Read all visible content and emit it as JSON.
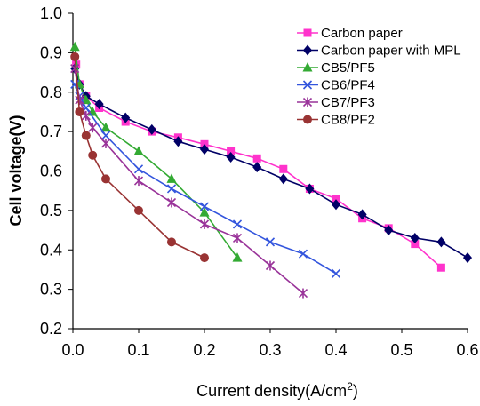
{
  "chart_data": {
    "type": "line",
    "title": "",
    "xlabel": "Current density(A/cm",
    "xlabel_sup": "2",
    "xlabel_close": ")",
    "ylabel": "Cell voltage(V)",
    "xlim": [
      0.0,
      0.6
    ],
    "ylim": [
      0.2,
      1.0
    ],
    "xticks": [
      0.0,
      0.1,
      0.2,
      0.3,
      0.4,
      0.5,
      0.6
    ],
    "yticks": [
      0.2,
      0.3,
      0.4,
      0.5,
      0.6,
      0.7,
      0.8,
      0.9,
      1.0
    ],
    "xtick_labels": [
      "0.0",
      "0.1",
      "0.2",
      "0.3",
      "0.4",
      "0.5",
      "0.6"
    ],
    "ytick_labels": [
      "0.2",
      "0.3",
      "0.4",
      "0.5",
      "0.6",
      "0.7",
      "0.8",
      "0.9",
      "1.0"
    ],
    "grid": false,
    "legend_position": "top-right",
    "series": [
      {
        "name": "Carbon paper",
        "color": "#ff33cc",
        "marker": "square",
        "x": [
          0.005,
          0.01,
          0.02,
          0.04,
          0.08,
          0.12,
          0.16,
          0.2,
          0.24,
          0.28,
          0.32,
          0.36,
          0.4,
          0.44,
          0.48,
          0.52,
          0.56
        ],
        "y": [
          0.87,
          0.82,
          0.79,
          0.76,
          0.725,
          0.7,
          0.685,
          0.668,
          0.65,
          0.632,
          0.605,
          0.555,
          0.53,
          0.48,
          0.455,
          0.415,
          0.355
        ]
      },
      {
        "name": "Carbon paper with MPL",
        "color": "#000066",
        "marker": "diamond",
        "x": [
          0.003,
          0.01,
          0.02,
          0.04,
          0.08,
          0.12,
          0.16,
          0.2,
          0.24,
          0.28,
          0.32,
          0.36,
          0.4,
          0.44,
          0.48,
          0.52,
          0.56,
          0.6
        ],
        "y": [
          0.86,
          0.82,
          0.79,
          0.77,
          0.735,
          0.705,
          0.675,
          0.655,
          0.635,
          0.61,
          0.58,
          0.555,
          0.515,
          0.49,
          0.45,
          0.43,
          0.42,
          0.38
        ]
      },
      {
        "name": "CB5/PF5",
        "color": "#33aa33",
        "marker": "triangle",
        "x": [
          0.003,
          0.01,
          0.02,
          0.03,
          0.05,
          0.1,
          0.15,
          0.2,
          0.25
        ],
        "y": [
          0.915,
          0.82,
          0.78,
          0.75,
          0.71,
          0.65,
          0.58,
          0.495,
          0.38
        ]
      },
      {
        "name": "CB6/PF4",
        "color": "#3355dd",
        "marker": "x",
        "x": [
          0.003,
          0.01,
          0.02,
          0.05,
          0.1,
          0.15,
          0.2,
          0.25,
          0.3,
          0.35,
          0.4
        ],
        "y": [
          0.82,
          0.79,
          0.76,
          0.69,
          0.605,
          0.555,
          0.51,
          0.465,
          0.42,
          0.39,
          0.34
        ]
      },
      {
        "name": "CB7/PF3",
        "color": "#993399",
        "marker": "asterisk",
        "x": [
          0.003,
          0.01,
          0.02,
          0.03,
          0.05,
          0.1,
          0.15,
          0.2,
          0.25,
          0.3,
          0.35
        ],
        "y": [
          0.86,
          0.78,
          0.74,
          0.71,
          0.67,
          0.575,
          0.52,
          0.465,
          0.43,
          0.36,
          0.29
        ]
      },
      {
        "name": "CB8/PF2",
        "color": "#993333",
        "marker": "circle",
        "x": [
          0.003,
          0.01,
          0.02,
          0.03,
          0.05,
          0.1,
          0.15,
          0.2
        ],
        "y": [
          0.89,
          0.75,
          0.69,
          0.64,
          0.58,
          0.5,
          0.42,
          0.38
        ]
      }
    ]
  }
}
